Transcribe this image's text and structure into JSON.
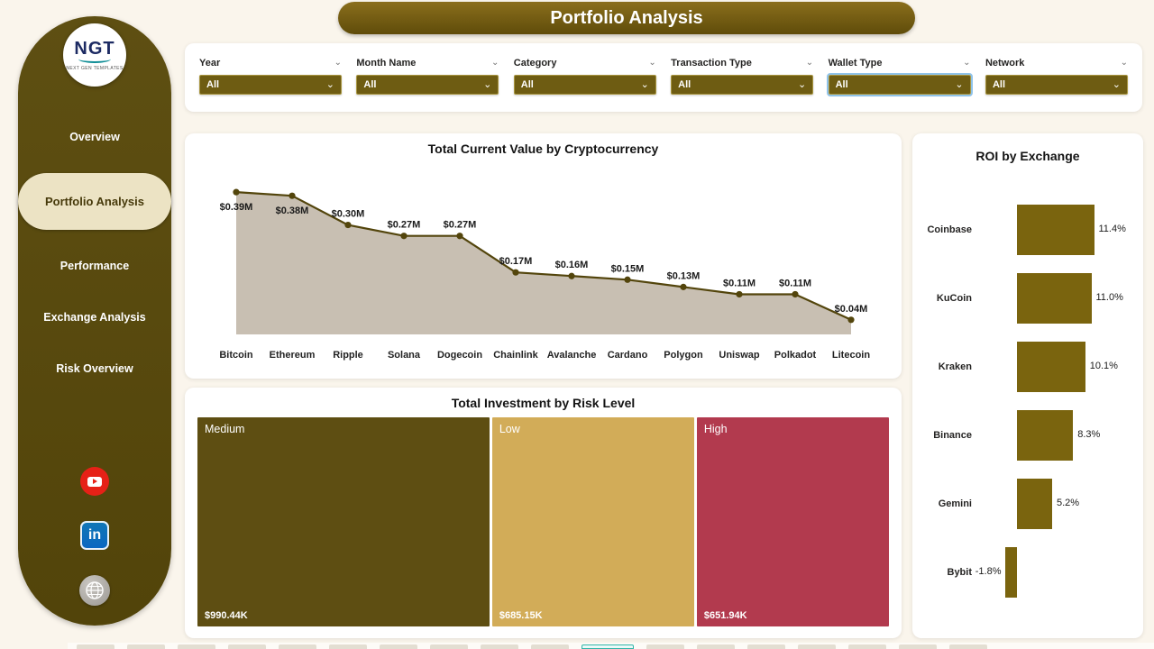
{
  "title": "Portfolio Analysis",
  "colors": {
    "bg": "#faf5ec",
    "sidebar": "#584a0c",
    "olive": "#6e5c12",
    "cream": "#ece3c4",
    "areaFill": "#c8bfb2",
    "line": "#53450c",
    "bar": "#7a640e"
  },
  "sidebar": {
    "logo": {
      "text": "NGT",
      "subtext": "NEXT GEN TEMPLATES"
    },
    "items": [
      {
        "label": "Overview",
        "active": false
      },
      {
        "label": "Portfolio Analysis",
        "active": true
      },
      {
        "label": "Performance",
        "active": false
      },
      {
        "label": "Exchange Analysis",
        "active": false
      },
      {
        "label": "Risk Overview",
        "active": false
      }
    ],
    "social": [
      "youtube",
      "linkedin",
      "website"
    ]
  },
  "filters": [
    {
      "label": "Year",
      "value": "All",
      "focused": false
    },
    {
      "label": "Month Name",
      "value": "All",
      "focused": false
    },
    {
      "label": "Category",
      "value": "All",
      "focused": false
    },
    {
      "label": "Transaction Type",
      "value": "All",
      "focused": false
    },
    {
      "label": "Wallet Type",
      "value": "All",
      "focused": true
    },
    {
      "label": "Network",
      "value": "All",
      "focused": false
    }
  ],
  "chart_data": [
    {
      "type": "area",
      "title": "Total Current Value by Cryptocurrency",
      "categories": [
        "Bitcoin",
        "Ethereum",
        "Ripple",
        "Solana",
        "Dogecoin",
        "Chainlink",
        "Avalanche",
        "Cardano",
        "Polygon",
        "Uniswap",
        "Polkadot",
        "Litecoin"
      ],
      "values": [
        0.39,
        0.38,
        0.3,
        0.27,
        0.27,
        0.17,
        0.16,
        0.15,
        0.13,
        0.11,
        0.11,
        0.04
      ],
      "labels": [
        "$0.39M",
        "$0.38M",
        "$0.30M",
        "$0.27M",
        "$0.27M",
        "$0.17M",
        "$0.16M",
        "$0.15M",
        "$0.13M",
        "$0.11M",
        "$0.11M",
        "$0.04M"
      ],
      "xlabel": "",
      "ylabel": "",
      "ylim": [
        0,
        0.42
      ],
      "grid": false,
      "legend": "none"
    },
    {
      "type": "treemap",
      "title": "Total Investment by Risk Level",
      "categories": [
        "Medium",
        "Low",
        "High"
      ],
      "values": [
        990.44,
        685.15,
        651.94
      ],
      "labels": [
        "$990.44K",
        "$685.15K",
        "$651.94K"
      ],
      "colors": [
        "#5e4e12",
        "#d2ac58",
        "#b23a4e"
      ]
    },
    {
      "type": "bar",
      "title": "ROI by Exchange",
      "categories": [
        "Coinbase",
        "KuCoin",
        "Kraken",
        "Binance",
        "Gemini",
        "Bybit"
      ],
      "values": [
        11.4,
        11.0,
        10.1,
        8.3,
        5.2,
        -1.8
      ],
      "labels": [
        "11.4%",
        "11.0%",
        "10.1%",
        "8.3%",
        "5.2%",
        "-1.8%"
      ],
      "orientation": "horizontal",
      "xlim": [
        -2,
        13
      ],
      "grid": false
    }
  ]
}
